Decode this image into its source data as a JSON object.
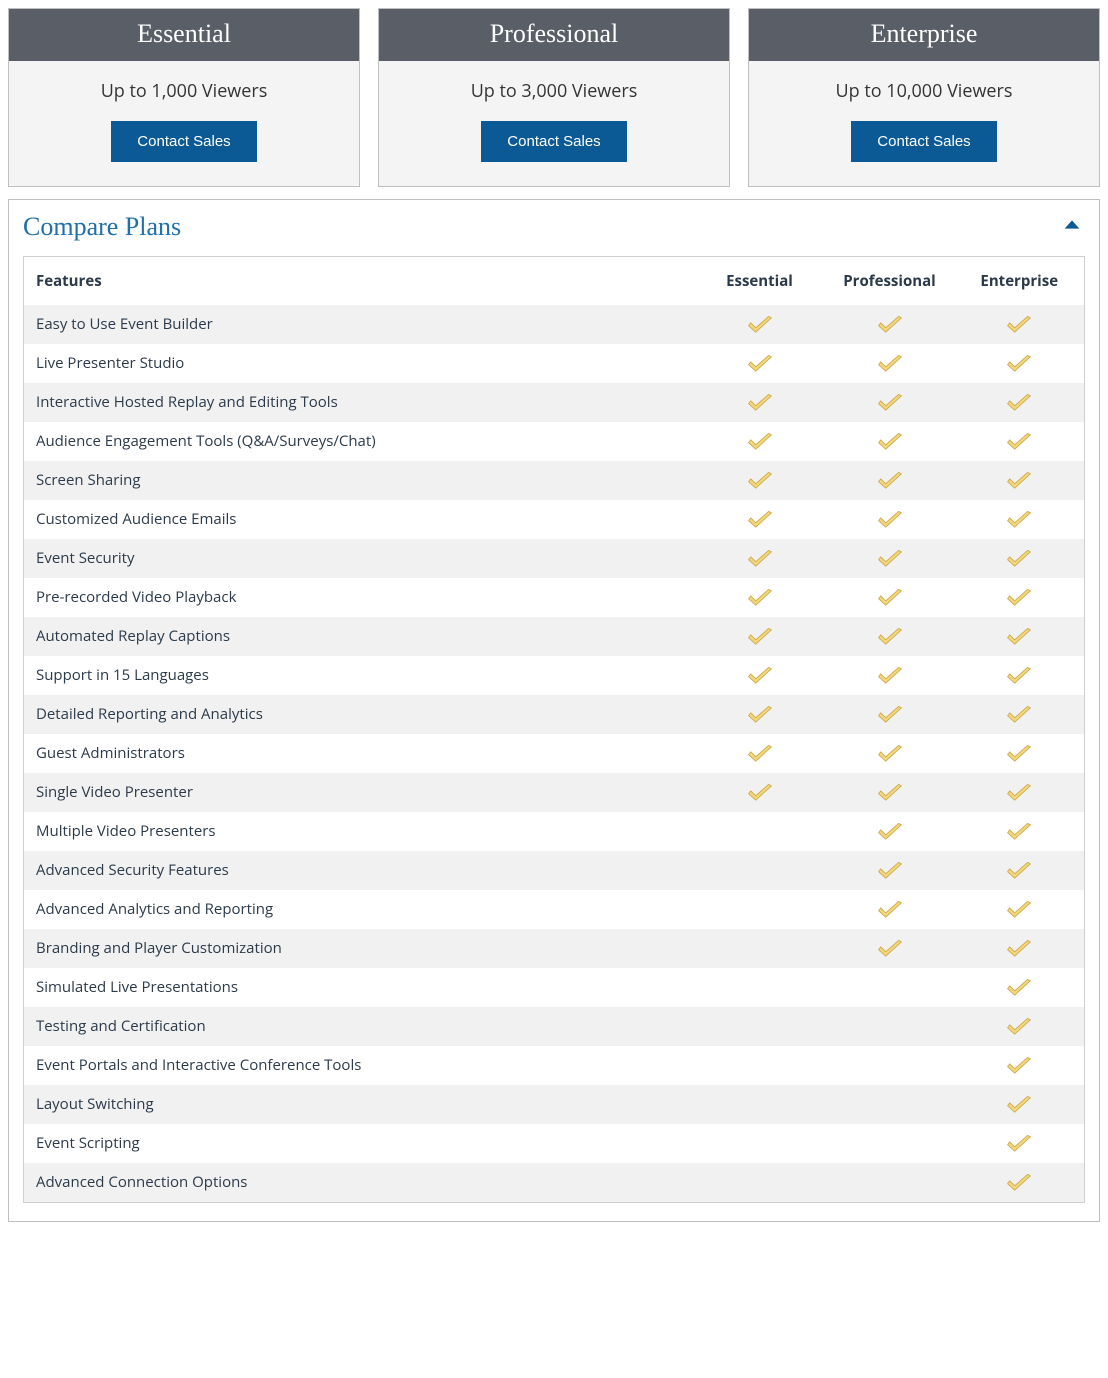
{
  "plans": [
    {
      "name": "Essential",
      "subtitle": "Up to 1,000 Viewers",
      "cta": "Contact Sales"
    },
    {
      "name": "Professional",
      "subtitle": "Up to 3,000 Viewers",
      "cta": "Contact Sales"
    },
    {
      "name": "Enterprise",
      "subtitle": "Up to 10,000 Viewers",
      "cta": "Contact Sales"
    }
  ],
  "compare": {
    "title": "Compare Plans",
    "feature_header": "Features",
    "columns": [
      "Essential",
      "Professional",
      "Enterprise"
    ],
    "rows": [
      {
        "label": "Easy to Use Event Builder",
        "vals": [
          true,
          true,
          true
        ]
      },
      {
        "label": "Live Presenter Studio",
        "vals": [
          true,
          true,
          true
        ]
      },
      {
        "label": "Interactive Hosted Replay and Editing Tools",
        "vals": [
          true,
          true,
          true
        ]
      },
      {
        "label": "Audience Engagement Tools (Q&A/Surveys/Chat)",
        "vals": [
          true,
          true,
          true
        ]
      },
      {
        "label": "Screen Sharing",
        "vals": [
          true,
          true,
          true
        ]
      },
      {
        "label": "Customized Audience Emails",
        "vals": [
          true,
          true,
          true
        ]
      },
      {
        "label": "Event Security",
        "vals": [
          true,
          true,
          true
        ]
      },
      {
        "label": "Pre-recorded Video Playback",
        "vals": [
          true,
          true,
          true
        ]
      },
      {
        "label": "Automated Replay Captions",
        "vals": [
          true,
          true,
          true
        ]
      },
      {
        "label": "Support in 15 Languages",
        "vals": [
          true,
          true,
          true
        ]
      },
      {
        "label": "Detailed Reporting and Analytics",
        "vals": [
          true,
          true,
          true
        ]
      },
      {
        "label": "Guest Administrators",
        "vals": [
          true,
          true,
          true
        ]
      },
      {
        "label": "Single Video Presenter",
        "vals": [
          true,
          true,
          true
        ]
      },
      {
        "label": "Multiple Video Presenters",
        "vals": [
          false,
          true,
          true
        ]
      },
      {
        "label": "Advanced Security Features",
        "vals": [
          false,
          true,
          true
        ]
      },
      {
        "label": "Advanced Analytics and Reporting",
        "vals": [
          false,
          true,
          true
        ]
      },
      {
        "label": "Branding and Player Customization",
        "vals": [
          false,
          true,
          true
        ]
      },
      {
        "label": "Simulated Live Presentations",
        "vals": [
          false,
          false,
          true
        ]
      },
      {
        "label": "Testing and Certification",
        "vals": [
          false,
          false,
          true
        ]
      },
      {
        "label": "Event Portals and Interactive Conference Tools",
        "vals": [
          false,
          false,
          true
        ]
      },
      {
        "label": "Layout Switching",
        "vals": [
          false,
          false,
          true
        ]
      },
      {
        "label": "Event Scripting",
        "vals": [
          false,
          false,
          true
        ]
      },
      {
        "label": "Advanced Connection Options",
        "vals": [
          false,
          false,
          true
        ]
      }
    ]
  },
  "style": {
    "plan_header_bg": "#5a5e66",
    "plan_header_fg": "#ffffff",
    "card_bg": "#f4f4f4",
    "card_border": "#bfbfbf",
    "cta_bg": "#0b5a96",
    "cta_fg": "#ffffff",
    "compare_title_color": "#1f6fa8",
    "table_border": "#cfcfcf",
    "row_alt_bg": "#f1f1f1",
    "check_fill": "#f4d77a",
    "check_stroke": "#c9a94a"
  }
}
